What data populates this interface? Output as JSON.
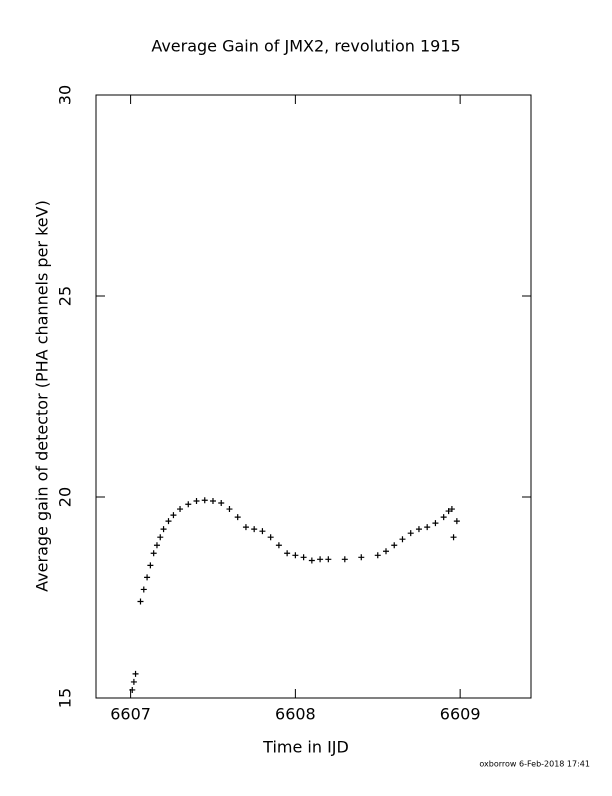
{
  "chart_data": {
    "type": "scatter",
    "title": "Average Gain of JMX2, revolution 1915",
    "x_label": "Time in IJD",
    "y_label": "Average gain of detector (PHA channels per keV)",
    "footer": "oxborrow  6-Feb-2018 17:41",
    "marker": "+",
    "color": "#000000",
    "x": [
      6607.01,
      6607.02,
      6607.03,
      6607.06,
      6607.08,
      6607.1,
      6607.12,
      6607.14,
      6607.16,
      6607.18,
      6607.2,
      6607.23,
      6607.26,
      6607.3,
      6607.35,
      6607.4,
      6607.45,
      6607.5,
      6607.55,
      6607.6,
      6607.65,
      6607.7,
      6607.75,
      6607.8,
      6607.85,
      6607.9,
      6607.95,
      6608.0,
      6608.05,
      6608.1,
      6608.15,
      6608.2,
      6608.3,
      6608.4,
      6608.5,
      6608.55,
      6608.6,
      6608.65,
      6608.7,
      6608.75,
      6608.8,
      6608.85,
      6608.9,
      6608.93,
      6608.95,
      6608.96,
      6608.98
    ],
    "y": [
      15.2,
      15.4,
      15.6,
      17.4,
      17.7,
      18.0,
      18.3,
      18.6,
      18.8,
      19.0,
      19.2,
      19.4,
      19.55,
      19.7,
      19.82,
      19.9,
      19.92,
      19.9,
      19.85,
      19.7,
      19.5,
      19.25,
      19.2,
      19.15,
      19.0,
      18.8,
      18.6,
      18.55,
      18.5,
      18.42,
      18.45,
      18.45,
      18.45,
      18.5,
      18.55,
      18.65,
      18.8,
      18.95,
      19.1,
      19.2,
      19.25,
      19.35,
      19.5,
      19.65,
      19.7,
      19.0,
      19.4
    ],
    "xlim": [
      6606.79,
      6609.43
    ],
    "ylim": [
      15,
      30
    ],
    "xticks": [
      6607,
      6608,
      6609
    ],
    "yticks": [
      15,
      20,
      25,
      30
    ]
  }
}
